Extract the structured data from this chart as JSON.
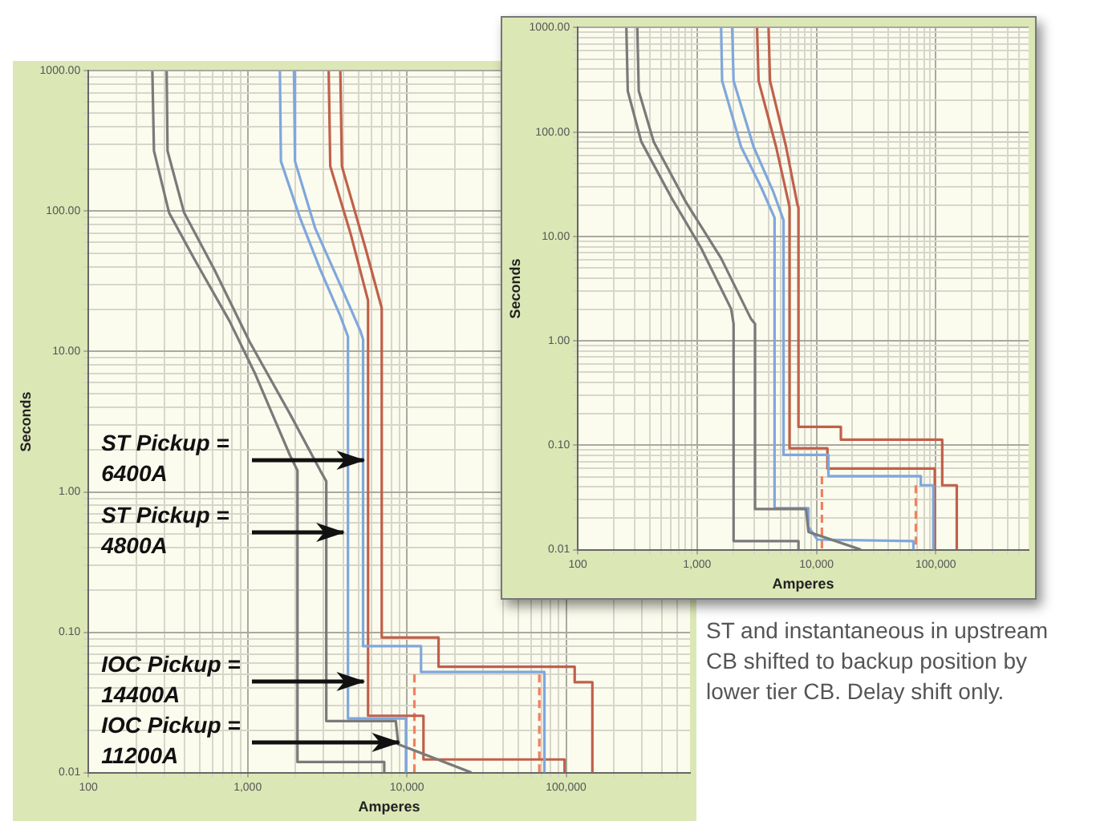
{
  "chart_data": [
    {
      "type": "line",
      "xlabel": "Amperes",
      "ylabel": "Seconds",
      "log": "xy",
      "grid": true,
      "legend": false,
      "marker": "none",
      "xlim": [
        100,
        600000
      ],
      "ylim": [
        0.01,
        1000
      ],
      "xticks": [
        {
          "value": 100,
          "label": "100"
        },
        {
          "value": 200,
          "label": null
        },
        {
          "value": 300,
          "label": null
        },
        {
          "value": 400,
          "label": null
        },
        {
          "value": 500,
          "label": null
        },
        {
          "value": 600,
          "label": null
        },
        {
          "value": 700,
          "label": null
        },
        {
          "value": 800,
          "label": null
        },
        {
          "value": 900,
          "label": null
        },
        {
          "value": 1000,
          "label": "1,000"
        },
        {
          "value": 2000,
          "label": null
        },
        {
          "value": 3000,
          "label": null
        },
        {
          "value": 4000,
          "label": null
        },
        {
          "value": 5000,
          "label": null
        },
        {
          "value": 6000,
          "label": null
        },
        {
          "value": 7000,
          "label": null
        },
        {
          "value": 8000,
          "label": null
        },
        {
          "value": 9000,
          "label": null
        },
        {
          "value": 10000,
          "label": "10,000"
        },
        {
          "value": 20000,
          "label": null
        },
        {
          "value": 30000,
          "label": null
        },
        {
          "value": 40000,
          "label": null
        },
        {
          "value": 50000,
          "label": null
        },
        {
          "value": 60000,
          "label": null
        },
        {
          "value": 70000,
          "label": null
        },
        {
          "value": 80000,
          "label": null
        },
        {
          "value": 90000,
          "label": null
        },
        {
          "value": 100000,
          "label": "100,000"
        },
        {
          "value": 200000,
          "label": null
        },
        {
          "value": 300000,
          "label": null
        },
        {
          "value": 400000,
          "label": null
        },
        {
          "value": 500000,
          "label": null
        }
      ],
      "yticks": [
        {
          "value": 0.01,
          "label": "0.01"
        },
        {
          "value": 0.02,
          "label": null
        },
        {
          "value": 0.03,
          "label": null
        },
        {
          "value": 0.04,
          "label": null
        },
        {
          "value": 0.05,
          "label": null
        },
        {
          "value": 0.06,
          "label": null
        },
        {
          "value": 0.07,
          "label": null
        },
        {
          "value": 0.08,
          "label": null
        },
        {
          "value": 0.09,
          "label": null
        },
        {
          "value": 0.1,
          "label": "0.10"
        },
        {
          "value": 0.2,
          "label": null
        },
        {
          "value": 0.3,
          "label": null
        },
        {
          "value": 0.4,
          "label": null
        },
        {
          "value": 0.5,
          "label": null
        },
        {
          "value": 0.6,
          "label": null
        },
        {
          "value": 0.7,
          "label": null
        },
        {
          "value": 0.8,
          "label": null
        },
        {
          "value": 0.9,
          "label": null
        },
        {
          "value": 1,
          "label": "1.00"
        },
        {
          "value": 2,
          "label": null
        },
        {
          "value": 3,
          "label": null
        },
        {
          "value": 4,
          "label": null
        },
        {
          "value": 5,
          "label": null
        },
        {
          "value": 6,
          "label": null
        },
        {
          "value": 7,
          "label": null
        },
        {
          "value": 8,
          "label": null
        },
        {
          "value": 9,
          "label": null
        },
        {
          "value": 10,
          "label": "10.00"
        },
        {
          "value": 20,
          "label": null
        },
        {
          "value": 30,
          "label": null
        },
        {
          "value": 40,
          "label": null
        },
        {
          "value": 50,
          "label": null
        },
        {
          "value": 60,
          "label": null
        },
        {
          "value": 70,
          "label": null
        },
        {
          "value": 80,
          "label": null
        },
        {
          "value": 90,
          "label": null
        },
        {
          "value": 100,
          "label": "100.00"
        },
        {
          "value": 200,
          "label": null
        },
        {
          "value": 300,
          "label": null
        },
        {
          "value": 400,
          "label": null
        },
        {
          "value": 500,
          "label": null
        },
        {
          "value": 600,
          "label": null
        },
        {
          "value": 700,
          "label": null
        },
        {
          "value": 800,
          "label": null
        },
        {
          "value": 900,
          "label": null
        },
        {
          "value": 1000,
          "label": "1000.00"
        }
      ],
      "series": [
        {
          "color": "#7a7a7a",
          "x": [
            252,
            258,
            321,
            463,
            769,
            1107,
            1845,
            2055,
            2055,
            7210,
            7210
          ],
          "values": [
            1000,
            269,
            97.5,
            45.5,
            16.5,
            7.06,
            1.82,
            1.42,
            0.0119,
            0.0119,
            0.01
          ]
        },
        {
          "color": "#7a7a7a",
          "x": [
            310,
            314,
            399,
            618,
            1030,
            1845,
            2856,
            3118,
            3118,
            8520,
            8830,
            25400
          ],
          "values": [
            1000,
            269,
            97.5,
            38.4,
            11.7,
            3.59,
            1.42,
            1.19,
            0.0233,
            0.0233,
            0.0159,
            0.01
          ]
        },
        {
          "color": "#7fa7dc",
          "x": [
            1594,
            1618,
            2133,
            2856,
            3820,
            4266,
            4266,
            9860,
            9860
          ],
          "values": [
            1000,
            227,
            89.5,
            38.4,
            17.9,
            12.8,
            0.0243,
            0.0243,
            0.01
          ]
        },
        {
          "color": "#7fa7dc",
          "x": [
            1954,
            1983,
            2655,
            3820,
            5117,
            5309,
            5309,
            12270,
            12270,
            73100,
            73100
          ],
          "values": [
            1000,
            227,
            75.6,
            29.8,
            13.9,
            12.2,
            0.0796,
            0.0796,
            0.0521,
            0.0521,
            0.01
          ]
        },
        {
          "color": "#c0604a",
          "x": [
            3228,
            3303,
            4426,
            5705,
            5705,
            12710,
            12710,
            97800,
            97800
          ],
          "values": [
            1000,
            209,
            69.5,
            23.1,
            0.0254,
            0.0254,
            0.0124,
            0.0124,
            0.01
          ]
        },
        {
          "color": "#c0604a",
          "x": [
            3820,
            3908,
            5508,
            6950,
            6950,
            15810,
            15810,
            113200,
            113200,
            146200,
            146200
          ],
          "values": [
            1000,
            209,
            54,
            20.4,
            0.0918,
            0.0918,
            0.0568,
            0.0568,
            0.044,
            0.044,
            0.01
          ]
        },
        {
          "color": "#f08060",
          "line_style": "dashed",
          "x": [
            11150,
            11150
          ],
          "values": [
            0.05,
            0.01
          ]
        },
        {
          "color": "#f08060",
          "line_style": "dashed",
          "x": [
            67900,
            67900
          ],
          "values": [
            0.05,
            0.01
          ]
        }
      ],
      "annotations": [
        {
          "text": "ST Pickup = 6400A",
          "x": 5500,
          "y": 1.7
        },
        {
          "text": "ST Pickup = 4800A",
          "x": 4100,
          "y": 0.51
        },
        {
          "text": "IOC Pickup = 14400A",
          "x": 5500,
          "y": 0.044
        },
        {
          "text": "IOC Pickup = 11200A",
          "x": 9160,
          "y": 0.0162
        }
      ]
    },
    {
      "type": "line",
      "xlabel": "Amperes",
      "ylabel": "Seconds",
      "log": "xy",
      "grid": true,
      "legend": false,
      "marker": "none",
      "xlim": [
        100,
        600000
      ],
      "ylim": [
        0.01,
        1000
      ],
      "xticks": [
        {
          "value": 100,
          "label": "100"
        },
        {
          "value": 200,
          "label": null
        },
        {
          "value": 300,
          "label": null
        },
        {
          "value": 400,
          "label": null
        },
        {
          "value": 500,
          "label": null
        },
        {
          "value": 600,
          "label": null
        },
        {
          "value": 700,
          "label": null
        },
        {
          "value": 800,
          "label": null
        },
        {
          "value": 900,
          "label": null
        },
        {
          "value": 1000,
          "label": "1,000"
        },
        {
          "value": 2000,
          "label": null
        },
        {
          "value": 3000,
          "label": null
        },
        {
          "value": 4000,
          "label": null
        },
        {
          "value": 5000,
          "label": null
        },
        {
          "value": 6000,
          "label": null
        },
        {
          "value": 7000,
          "label": null
        },
        {
          "value": 8000,
          "label": null
        },
        {
          "value": 9000,
          "label": null
        },
        {
          "value": 10000,
          "label": "10,000"
        },
        {
          "value": 20000,
          "label": null
        },
        {
          "value": 30000,
          "label": null
        },
        {
          "value": 40000,
          "label": null
        },
        {
          "value": 50000,
          "label": null
        },
        {
          "value": 60000,
          "label": null
        },
        {
          "value": 70000,
          "label": null
        },
        {
          "value": 80000,
          "label": null
        },
        {
          "value": 90000,
          "label": null
        },
        {
          "value": 100000,
          "label": "100,000"
        },
        {
          "value": 200000,
          "label": null
        },
        {
          "value": 300000,
          "label": null
        },
        {
          "value": 400000,
          "label": null
        },
        {
          "value": 500000,
          "label": null
        }
      ],
      "yticks": [
        {
          "value": 0.01,
          "label": "0.01"
        },
        {
          "value": 0.02,
          "label": null
        },
        {
          "value": 0.03,
          "label": null
        },
        {
          "value": 0.04,
          "label": null
        },
        {
          "value": 0.05,
          "label": null
        },
        {
          "value": 0.06,
          "label": null
        },
        {
          "value": 0.07,
          "label": null
        },
        {
          "value": 0.08,
          "label": null
        },
        {
          "value": 0.09,
          "label": null
        },
        {
          "value": 0.1,
          "label": "0.10"
        },
        {
          "value": 0.2,
          "label": null
        },
        {
          "value": 0.3,
          "label": null
        },
        {
          "value": 0.4,
          "label": null
        },
        {
          "value": 0.5,
          "label": null
        },
        {
          "value": 0.6,
          "label": null
        },
        {
          "value": 0.7,
          "label": null
        },
        {
          "value": 0.8,
          "label": null
        },
        {
          "value": 0.9,
          "label": null
        },
        {
          "value": 1,
          "label": "1.00"
        },
        {
          "value": 2,
          "label": null
        },
        {
          "value": 3,
          "label": null
        },
        {
          "value": 4,
          "label": null
        },
        {
          "value": 5,
          "label": null
        },
        {
          "value": 6,
          "label": null
        },
        {
          "value": 7,
          "label": null
        },
        {
          "value": 8,
          "label": null
        },
        {
          "value": 9,
          "label": null
        },
        {
          "value": 10,
          "label": "10.00"
        },
        {
          "value": 20,
          "label": null
        },
        {
          "value": 30,
          "label": null
        },
        {
          "value": 40,
          "label": null
        },
        {
          "value": 50,
          "label": null
        },
        {
          "value": 60,
          "label": null
        },
        {
          "value": 70,
          "label": null
        },
        {
          "value": 80,
          "label": null
        },
        {
          "value": 90,
          "label": null
        },
        {
          "value": 100,
          "label": "100.00"
        },
        {
          "value": 200,
          "label": null
        },
        {
          "value": 300,
          "label": null
        },
        {
          "value": 400,
          "label": null
        },
        {
          "value": 500,
          "label": null
        },
        {
          "value": 600,
          "label": null
        },
        {
          "value": 700,
          "label": null
        },
        {
          "value": 800,
          "label": null
        },
        {
          "value": 900,
          "label": null
        },
        {
          "value": 1000,
          "label": "1000.00"
        }
      ],
      "series": [
        {
          "color": "#7a7a7a",
          "x": [
            255,
            262,
            340,
            606,
            1080,
            1928,
            2020,
            2020,
            7066,
            7066
          ],
          "values": [
            1000,
            247,
            80.9,
            23.7,
            7.73,
            2.02,
            1.45,
            0.0121,
            0.0121,
            0.01
          ]
        },
        {
          "color": "#7a7a7a",
          "x": [
            315,
            324,
            432,
            809,
            1588,
            2830,
            3057,
            3057,
            8168,
            8570,
            23560
          ],
          "values": [
            1000,
            247,
            80.9,
            21.1,
            6.18,
            1.62,
            1.45,
            0.0245,
            0.0245,
            0.0148,
            0.01
          ]
        },
        {
          "color": "#7fa7dc",
          "x": [
            1588,
            1619,
            2333,
            3435,
            4454,
            4454,
            8570,
            8570,
            10190,
            64900,
            64900
          ],
          "values": [
            1000,
            309,
            72.3,
            29.6,
            15.1,
            0.025,
            0.025,
            0.0165,
            0.0125,
            0.0121,
            0.01
          ]
        },
        {
          "color": "#7fa7dc",
          "x": [
            1965,
            2020,
            2970,
            4366,
            5297,
            5297,
            12600,
            12600,
            74900,
            74900,
            95300,
            95300
          ],
          "values": [
            1000,
            309,
            72.3,
            26.4,
            14.3,
            0.0809,
            0.0809,
            0.0506,
            0.0506,
            0.0414,
            0.0414,
            0.01
          ]
        },
        {
          "color": "#c0604a",
          "x": [
            3176,
            3271,
            4585,
            5837,
            5946,
            5946,
            12360,
            12360,
            98100,
            98100
          ],
          "values": [
            1000,
            309,
            72.3,
            21.1,
            18.9,
            0.0935,
            0.0935,
            0.0598,
            0.0598,
            0.01
          ]
        },
        {
          "color": "#c0604a",
          "x": [
            3966,
            4081,
            5560,
            6935,
            7066,
            7066,
            16020,
            16020,
            113300,
            113300,
            150000,
            150000
          ],
          "values": [
            1000,
            309,
            72.3,
            20,
            18.9,
            0.15,
            0.15,
            0.113,
            0.113,
            0.0414,
            0.0414,
            0.01
          ]
        },
        {
          "color": "#f08060",
          "line_style": "dashed",
          "x": [
            11110,
            11110
          ],
          "values": [
            0.0506,
            0.01
          ]
        },
        {
          "color": "#f08060",
          "line_style": "dashed",
          "x": [
            68100,
            68100
          ],
          "values": [
            0.0414,
            0.01
          ]
        }
      ],
      "annotations": [
        "ST and instantaneous in upstream CB shifted to backup position by lower tier CB. Delay shift only."
      ]
    }
  ]
}
